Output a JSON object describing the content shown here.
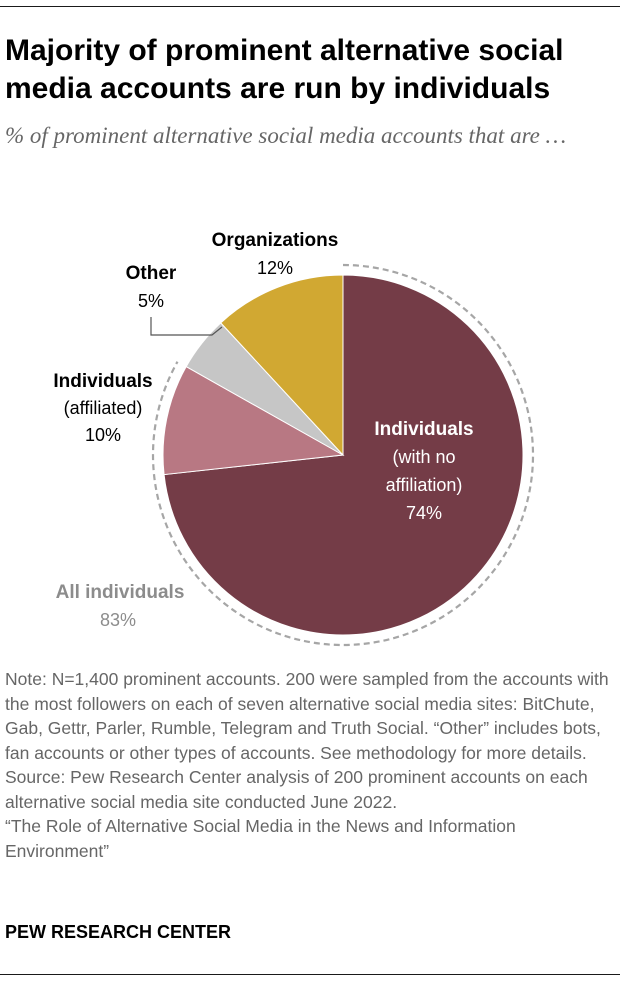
{
  "title": "Majority of prominent alternative social media accounts are run by individuals",
  "subtitle": "% of prominent alternative social media accounts that are …",
  "chart_data": {
    "type": "pie",
    "slices": [
      {
        "name": "Individuals",
        "detail_lines": [
          "(with no",
          "affiliation)"
        ],
        "value": 74,
        "value_label": "74%",
        "color": "#743C47",
        "label_color": "#ffffff"
      },
      {
        "name": "Individuals",
        "detail_lines": [
          "(affiliated)"
        ],
        "value": 10,
        "value_label": "10%",
        "color": "#B87883",
        "label_color": "#000000"
      },
      {
        "name": "Other",
        "detail_lines": [],
        "value": 5,
        "value_label": "5%",
        "color": "#C6C6C6",
        "label_color": "#000000"
      },
      {
        "name": "Organizations",
        "detail_lines": [],
        "value": 12,
        "value_label": "12%",
        "color": "#D1A832",
        "label_color": "#000000"
      }
    ],
    "group": {
      "name": "All individuals",
      "value": 83,
      "value_label": "83%",
      "color": "#8C8C8C"
    }
  },
  "notes": {
    "note": "Note: N=1,400 prominent accounts. 200 were sampled from the accounts with the most followers on each of seven alternative social media sites: BitChute, Gab, Gettr, Parler, Rumble, Telegram and Truth Social. “Other” includes bots, fan accounts or other types of accounts. See methodology for more details.",
    "source": "Source: Pew Research Center analysis of 200 prominent accounts on each alternative social media site conducted June 2022.",
    "report": "“The Role of Alternative Social Media in the News and Information Environment”"
  },
  "brand": "PEW RESEARCH CENTER"
}
